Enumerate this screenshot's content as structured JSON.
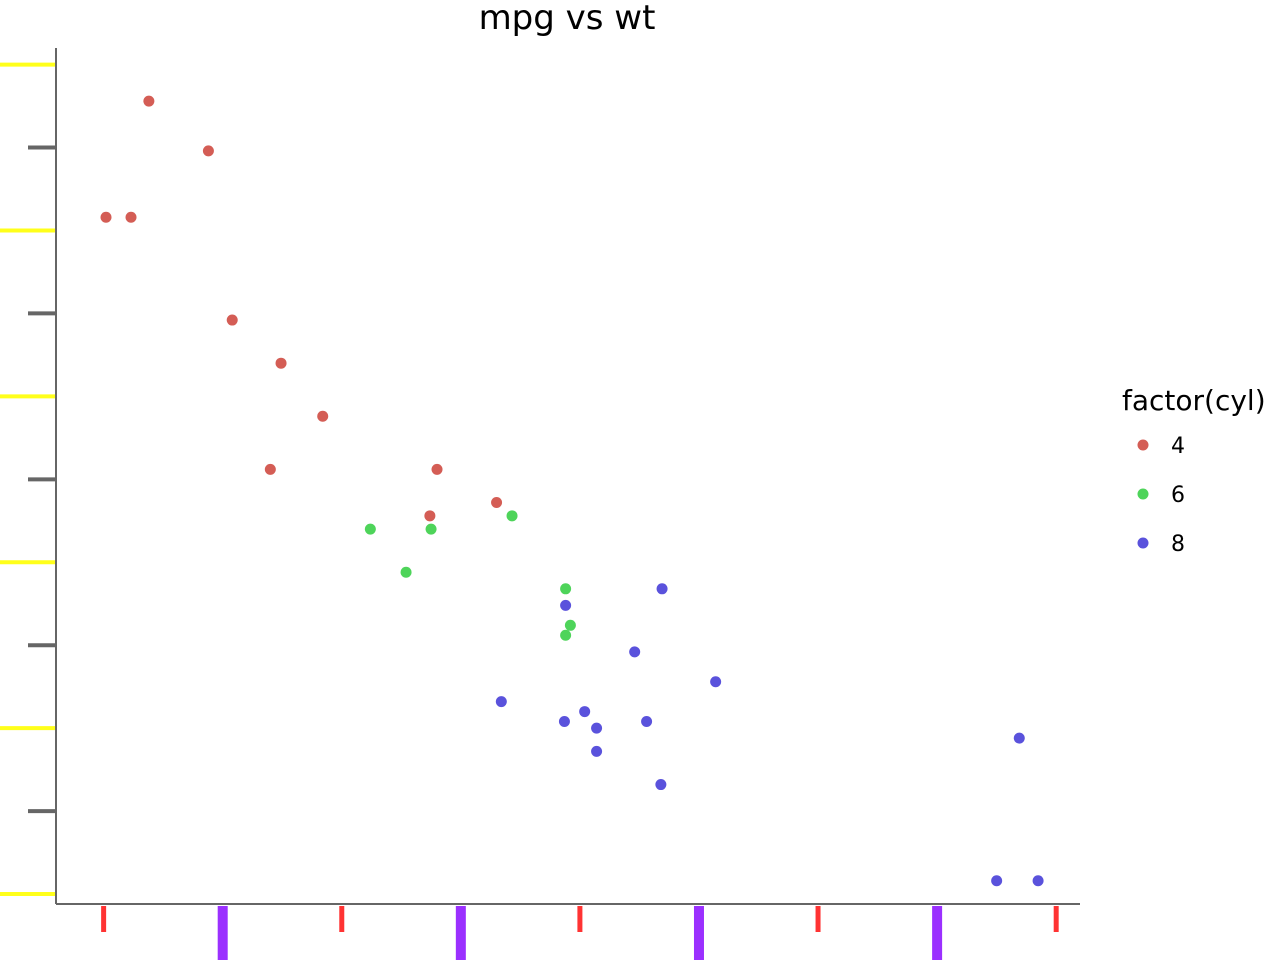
{
  "chart_data": {
    "type": "scatter",
    "title": "mpg vs wt",
    "xlabel": "",
    "ylabel": "",
    "xlim": [
      1.3,
      5.6
    ],
    "ylim": [
      9.7,
      35.5
    ],
    "x_ticks": [
      1.5,
      2.0,
      2.5,
      3.0,
      3.5,
      4.0,
      4.5,
      5.0,
      5.5
    ],
    "y_ticks": [
      10,
      12.5,
      15,
      17.5,
      20,
      22.5,
      25,
      27.5,
      30,
      32.5,
      35
    ],
    "grid": false,
    "legend": {
      "title": "factor(cyl)",
      "position": "right"
    },
    "series": [
      {
        "name": "4",
        "color": "#d45d55",
        "points": [
          [
            1.69,
            33.9
          ],
          [
            1.94,
            32.4
          ],
          [
            1.51,
            30.4
          ],
          [
            1.615,
            30.4
          ],
          [
            2.04,
            27.3
          ],
          [
            2.245,
            26.0
          ],
          [
            2.42,
            24.4
          ],
          [
            2.2,
            22.8
          ],
          [
            2.9,
            22.8
          ],
          [
            2.87,
            21.4
          ],
          [
            3.15,
            21.8
          ]
        ]
      },
      {
        "name": "6",
        "color": "#4ed45a",
        "points": [
          [
            2.62,
            21.0
          ],
          [
            2.875,
            21.0
          ],
          [
            3.215,
            21.4
          ],
          [
            3.46,
            18.1
          ],
          [
            3.44,
            19.2
          ],
          [
            3.44,
            17.8
          ],
          [
            2.77,
            19.7
          ]
        ]
      },
      {
        "name": "8",
        "color": "#5a52dc",
        "points": [
          [
            3.44,
            18.7
          ],
          [
            3.57,
            14.3
          ],
          [
            4.07,
            16.4
          ],
          [
            3.73,
            17.3
          ],
          [
            3.78,
            15.2
          ],
          [
            5.25,
            10.4
          ],
          [
            5.424,
            10.4
          ],
          [
            5.345,
            14.7
          ],
          [
            3.52,
            15.5
          ],
          [
            3.435,
            15.2
          ],
          [
            3.84,
            13.3
          ],
          [
            3.845,
            19.2
          ],
          [
            3.17,
            15.8
          ],
          [
            3.57,
            15.0
          ]
        ]
      }
    ]
  }
}
